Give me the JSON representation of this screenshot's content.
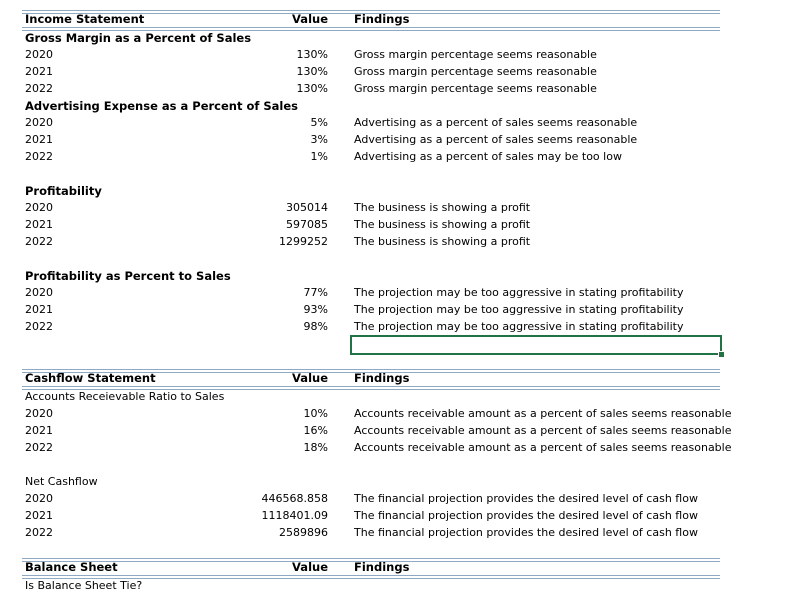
{
  "sections": [
    {
      "title": "Income Statement",
      "value_header": "Value",
      "findings_header": "Findings",
      "groups": [
        {
          "title": "Gross Margin as a Percent of Sales",
          "rows": [
            [
              "2020",
              "130%",
              "Gross margin percentage seems reasonable"
            ],
            [
              "2021",
              "130%",
              "Gross margin percentage seems reasonable"
            ],
            [
              "2022",
              "130%",
              "Gross margin percentage seems reasonable"
            ]
          ]
        },
        {
          "title": "Advertising Expense as a Percent of Sales",
          "rows": [
            [
              "2020",
              "5%",
              "Advertising as a percent of sales seems reasonable"
            ],
            [
              "2021",
              "3%",
              "Advertising as a percent of sales seems reasonable"
            ],
            [
              "2022",
              "1%",
              "Advertising as a percent of sales may be too low"
            ]
          ]
        },
        {
          "title": "Profitability",
          "rows": [
            [
              "2020",
              "305014",
              "The business is showing a profit"
            ],
            [
              "2021",
              "597085",
              "The business is showing a profit"
            ],
            [
              "2022",
              "1299252",
              "The business is showing a profit"
            ]
          ]
        },
        {
          "title": "Profitability as Percent to Sales",
          "rows": [
            [
              "2020",
              "77%",
              "The projection may be too aggressive in stating profitability"
            ],
            [
              "2021",
              "93%",
              "The projection may be too aggressive in stating profitability"
            ],
            [
              "2022",
              "98%",
              "The projection may be too aggressive in stating profitability"
            ]
          ]
        }
      ]
    },
    {
      "title": "Cashflow Statement",
      "value_header": "Value",
      "findings_header": "Findings",
      "groups": [
        {
          "title": "Accounts Receievable Ratio to Sales",
          "rows": [
            [
              "2020",
              "10%",
              "Accounts receivable amount as a percent of sales seems reasonable"
            ],
            [
              "2021",
              "16%",
              "Accounts receivable amount as a percent of sales seems reasonable"
            ],
            [
              "2022",
              "18%",
              "Accounts receivable amount as a percent of sales seems reasonable"
            ]
          ]
        },
        {
          "title": "Net Cashflow",
          "rows": [
            [
              "2020",
              "446568.858",
              "The financial projection provides the desired level of cash flow"
            ],
            [
              "2021",
              "1118401.09",
              "The financial projection provides the desired level of cash flow"
            ],
            [
              "2022",
              "2589896",
              "The financial projection provides the desired level of cash flow"
            ]
          ]
        }
      ]
    },
    {
      "title": "Balance Sheet",
      "value_header": "Value",
      "findings_header": "Findings",
      "groups": [
        {
          "title": "Is Balance Sheet Tie?",
          "rows": []
        }
      ]
    }
  ]
}
